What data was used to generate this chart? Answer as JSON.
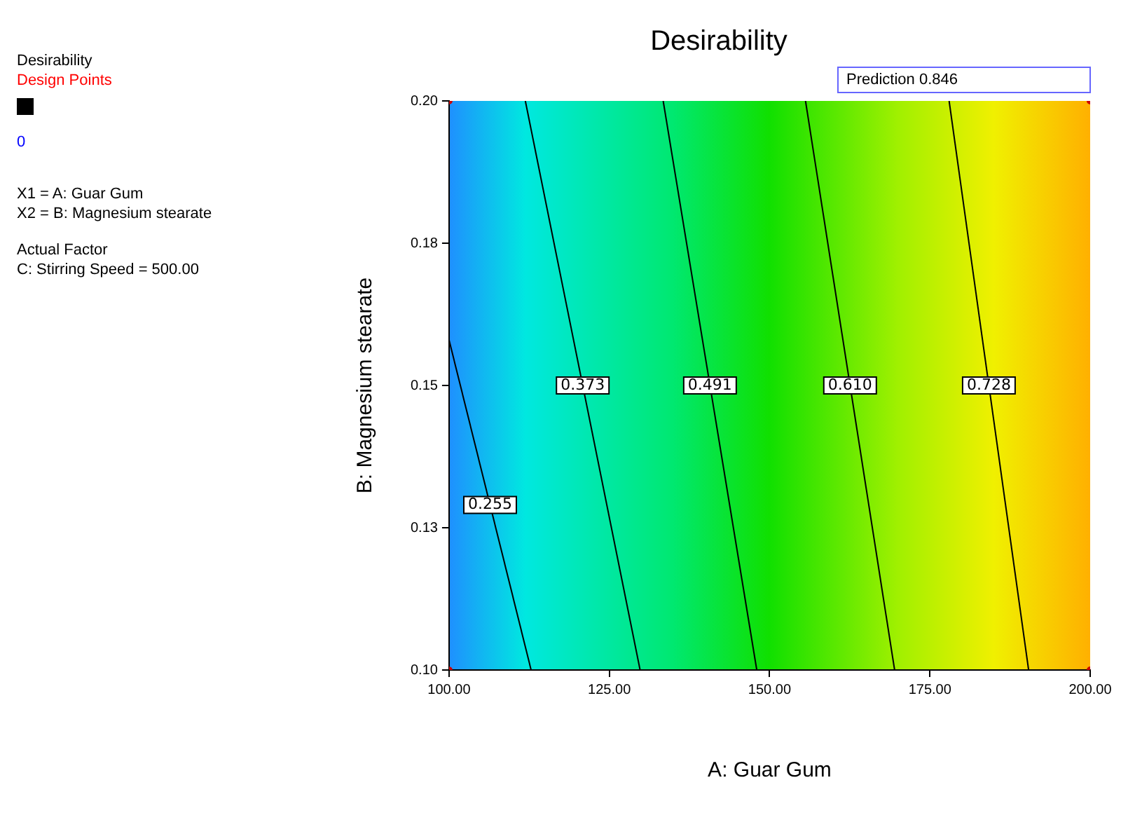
{
  "chart_data": {
    "type": "line",
    "title": "Desirability",
    "xlabel": "A: Guar Gum",
    "ylabel": "B: Magnesium stearate",
    "xlim": [
      100,
      200
    ],
    "xticks": [
      {
        "value": 100,
        "label": "100.00"
      },
      {
        "value": 125,
        "label": "125.00"
      },
      {
        "value": 150,
        "label": "150.00"
      },
      {
        "value": 175,
        "label": "175.00"
      },
      {
        "value": 200,
        "label": "200.00"
      }
    ],
    "ylim": [
      0.1,
      0.2
    ],
    "yticks": [
      {
        "value": 0.1,
        "label": "0.10"
      },
      {
        "value": 0.125,
        "label": "0.13"
      },
      {
        "value": 0.15,
        "label": "0.15"
      },
      {
        "value": 0.175,
        "label": "0.18"
      },
      {
        "value": 0.2,
        "label": "0.20"
      }
    ],
    "series": [
      {
        "name": "0.255",
        "type": "line",
        "color": "#000000",
        "x": [
          100,
          112.8
        ],
        "values": [
          0.158,
          0.1
        ]
      },
      {
        "name": "0.373",
        "type": "line",
        "color": "#000000",
        "x": [
          111.9,
          129.8
        ],
        "values": [
          0.2,
          0.1
        ]
      },
      {
        "name": "0.491",
        "type": "line",
        "color": "#000000",
        "x": [
          133.4,
          148
        ],
        "values": [
          0.2,
          0.1
        ]
      },
      {
        "name": "0.610",
        "type": "line",
        "color": "#000000",
        "x": [
          155.6,
          169.5
        ],
        "values": [
          0.2,
          0.1
        ]
      },
      {
        "name": "0.728",
        "type": "line",
        "color": "#000000",
        "x": [
          178,
          190.4
        ],
        "values": [
          0.2,
          0.1
        ]
      },
      {
        "type": "scatter",
        "color": "#cc0000",
        "x": [
          100,
          100,
          200,
          200
        ],
        "values": [
          0.1,
          0.2,
          0.1,
          0.2
        ]
      }
    ],
    "annotations": [
      "Desirability",
      "Design Points",
      "0",
      "X1 = A: Guar Gum",
      "X2 = B: Magnesium stearate",
      "Actual Factor",
      "C: Stirring Speed = 500.00",
      "Prediction 0.846"
    ],
    "legend": false
  }
}
